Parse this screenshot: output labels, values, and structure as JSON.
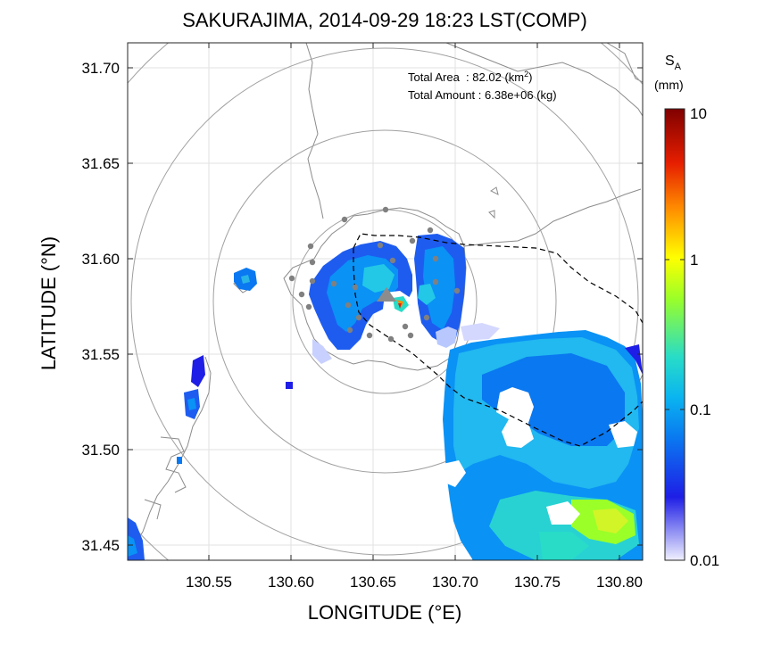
{
  "title": "SAKURAJIMA, 2014-09-29 18:23 LST(COMP)",
  "annotation": {
    "line1_label": "Total Area",
    "line1_sep": "  : ",
    "line1_value": "82.02",
    "line1_unit_open": " (km",
    "line1_unit_sup": "2",
    "line1_unit_close": ")",
    "line2_label": "Total Amount",
    "line2_sep": " : ",
    "line2_value": "6.38e+06",
    "line2_unit": " (kg)"
  },
  "colorbar": {
    "symbol": "S",
    "symbol_sub": "A",
    "unit": "(mm)",
    "ticks": [
      "10",
      "1",
      "0.1",
      "0.01"
    ],
    "scale": "log",
    "range": [
      0.01,
      10
    ],
    "colors": [
      "#f0f0ff",
      "#1e1ee6",
      "#0aa0f5",
      "#28dcc8",
      "#9bff28",
      "#ffff00",
      "#ff8c00",
      "#e61e00",
      "#800000"
    ]
  },
  "axes": {
    "xlabel": "LONGITUDE (°E)",
    "ylabel": "LATITUDE (°N)",
    "xlim": [
      130.501,
      130.818
    ],
    "ylim": [
      31.441,
      31.71
    ],
    "xticks": [
      "130.55",
      "130.60",
      "130.65",
      "130.70",
      "130.75",
      "130.80"
    ],
    "yticks": [
      "31.70",
      "31.65",
      "31.60",
      "31.55",
      "31.50",
      "31.45"
    ],
    "grid": true
  },
  "map": {
    "center": [
      130.659,
      31.572
    ],
    "range_rings": 4,
    "coastline_color": "#8c8c8c",
    "boundary_style": "dashed",
    "station_color": "#808080",
    "vent_marker": "triangle"
  }
}
